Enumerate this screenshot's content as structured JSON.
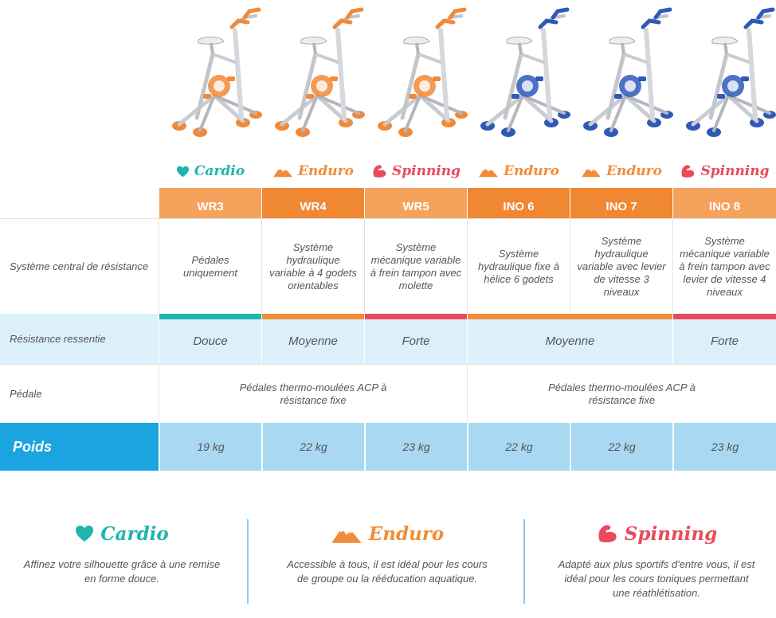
{
  "colors": {
    "cardio": "#1fb5ad",
    "enduro": "#f28c38",
    "spinning": "#e94b5a",
    "header_light": "#f5a25c",
    "header_dark": "#ef8733",
    "row_blue_light": "#dcf0fb",
    "poids_label_bg": "#1aa5e0",
    "poids_cell_bg": "#a8d8f2"
  },
  "products": [
    {
      "model": "WR3",
      "category": "Cardio",
      "category_icon": "heart-icon",
      "frame": "orange",
      "resistance_system": "Pédales uniquement",
      "weight": "19 kg"
    },
    {
      "model": "WR4",
      "category": "Enduro",
      "category_icon": "mountain-icon",
      "frame": "orange",
      "resistance_system": "Système hydraulique variable à 4 godets orientables",
      "weight": "22 kg"
    },
    {
      "model": "WR5",
      "category": "Spinning",
      "category_icon": "flexed-arm-icon",
      "frame": "orange",
      "resistance_system": "Système mécanique variable à frein tampon avec molette",
      "weight": "23 kg"
    },
    {
      "model": "INO 6",
      "category": "Enduro",
      "category_icon": "mountain-icon",
      "frame": "blue",
      "resistance_system": "Système hydraulique fixe à hélice 6 godets",
      "weight": "22 kg"
    },
    {
      "model": "INO 7",
      "category": "Enduro",
      "category_icon": "mountain-icon",
      "frame": "blue",
      "resistance_system": "Système hydraulique variable avec levier de vitesse 3 niveaux",
      "weight": "22 kg"
    },
    {
      "model": "INO 8",
      "category": "Spinning",
      "category_icon": "flexed-arm-icon",
      "frame": "blue",
      "resistance_system": "Système mécanique variable à frein tampon avec levier de vitesse 4 niveaux",
      "weight": "23 kg"
    }
  ],
  "rows": {
    "resistance_system_label": "Système central de résistance",
    "felt_resistance_label": "Résistance ressentie",
    "pedal_label": "Pédale",
    "weight_label": "Poids"
  },
  "felt_resistance": {
    "wr3": "Douce",
    "wr4": "Moyenne",
    "wr5": "Forte",
    "ino6_ino7": "Moyenne",
    "ino8": "Forte"
  },
  "pedals": {
    "wr_group": "Pédales thermo-moulées ACP à résistance fixe",
    "ino_group": "Pédales thermo-moulées ACP à résistance fixe"
  },
  "legend": [
    {
      "title": "Cardio",
      "icon": "heart-icon",
      "text": "Affinez votre silhouette grâce à une remise en forme douce."
    },
    {
      "title": "Enduro",
      "icon": "mountain-icon",
      "text": "Accessible à tous, il est idéal pour les cours de groupe ou la rééducation aquatique."
    },
    {
      "title": "Spinning",
      "icon": "flexed-arm-icon",
      "text": "Adapté aux plus sportifs d'entre vous, il est idéal pour les cours toniques permettant une réathlétisation."
    }
  ]
}
